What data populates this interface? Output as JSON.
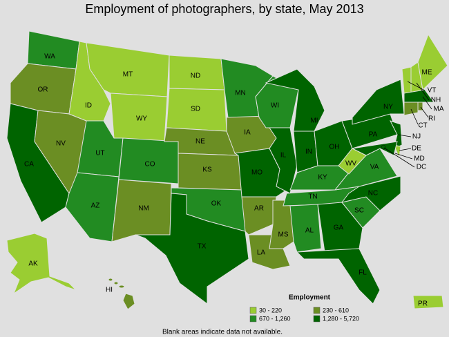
{
  "title": "Employment of photographers, by state, May 2013",
  "legend": {
    "title": "Employment",
    "items": [
      {
        "label": "30 - 220",
        "color": "#9acd32"
      },
      {
        "label": "230 - 610",
        "color": "#6b8e23"
      },
      {
        "label": "670 - 1,260",
        "color": "#228b22"
      },
      {
        "label": "1,280 - 5,720",
        "color": "#006400"
      }
    ]
  },
  "states": [
    {
      "label": "WA",
      "color": "#228b22"
    },
    {
      "label": "OR",
      "color": "#6b8e23"
    },
    {
      "label": "CA",
      "color": "#006400"
    },
    {
      "label": "NV",
      "color": "#6b8e23"
    },
    {
      "label": "ID",
      "color": "#9acd32"
    },
    {
      "label": "MT",
      "color": "#9acd32"
    },
    {
      "label": "WY",
      "color": "#9acd32"
    },
    {
      "label": "UT",
      "color": "#228b22"
    },
    {
      "label": "AZ",
      "color": "#228b22"
    },
    {
      "label": "CO",
      "color": "#228b22"
    },
    {
      "label": "NM",
      "color": "#6b8e23"
    },
    {
      "label": "ND",
      "color": "#9acd32"
    },
    {
      "label": "SD",
      "color": "#9acd32"
    },
    {
      "label": "NE",
      "color": "#6b8e23"
    },
    {
      "label": "KS",
      "color": "#6b8e23"
    },
    {
      "label": "OK",
      "color": "#228b22"
    },
    {
      "label": "TX",
      "color": "#006400"
    },
    {
      "label": "MN",
      "color": "#228b22"
    },
    {
      "label": "IA",
      "color": "#6b8e23"
    },
    {
      "label": "MO",
      "color": "#006400"
    },
    {
      "label": "AR",
      "color": "#6b8e23"
    },
    {
      "label": "LA",
      "color": "#6b8e23"
    },
    {
      "label": "MS",
      "color": "#6b8e23"
    },
    {
      "label": "WI",
      "color": "#228b22"
    },
    {
      "label": "IL",
      "color": "#006400"
    },
    {
      "label": "MI",
      "color": "#006400"
    },
    {
      "label": "IN",
      "color": "#006400"
    },
    {
      "label": "OH",
      "color": "#006400"
    },
    {
      "label": "KY",
      "color": "#228b22"
    },
    {
      "label": "TN",
      "color": "#228b22"
    },
    {
      "label": "AL",
      "color": "#228b22"
    },
    {
      "label": "GA",
      "color": "#006400"
    },
    {
      "label": "FL",
      "color": "#006400"
    },
    {
      "label": "SC",
      "color": "#228b22"
    },
    {
      "label": "NC",
      "color": "#006400"
    },
    {
      "label": "VA",
      "color": "#228b22"
    },
    {
      "label": "WV",
      "color": "#9acd32"
    },
    {
      "label": "PA",
      "color": "#006400"
    },
    {
      "label": "NY",
      "color": "#006400"
    },
    {
      "label": "NJ",
      "color": "#006400"
    },
    {
      "label": "DE",
      "color": "#9acd32"
    },
    {
      "label": "MD",
      "color": "#006400"
    },
    {
      "label": "DC",
      "color": "#006400"
    },
    {
      "label": "VT",
      "color": "#9acd32"
    },
    {
      "label": "NH",
      "color": "#9acd32"
    },
    {
      "label": "ME",
      "color": "#9acd32"
    },
    {
      "label": "MA",
      "color": "#006400"
    },
    {
      "label": "CT",
      "color": "#6b8e23"
    },
    {
      "label": "RI",
      "color": "#6b8e23"
    },
    {
      "label": "AK",
      "color": "#9acd32"
    },
    {
      "label": "HI",
      "color": "#6b8e23"
    },
    {
      "label": "PR",
      "color": "#9acd32"
    }
  ],
  "footnote": "Blank areas indicate data not available."
}
